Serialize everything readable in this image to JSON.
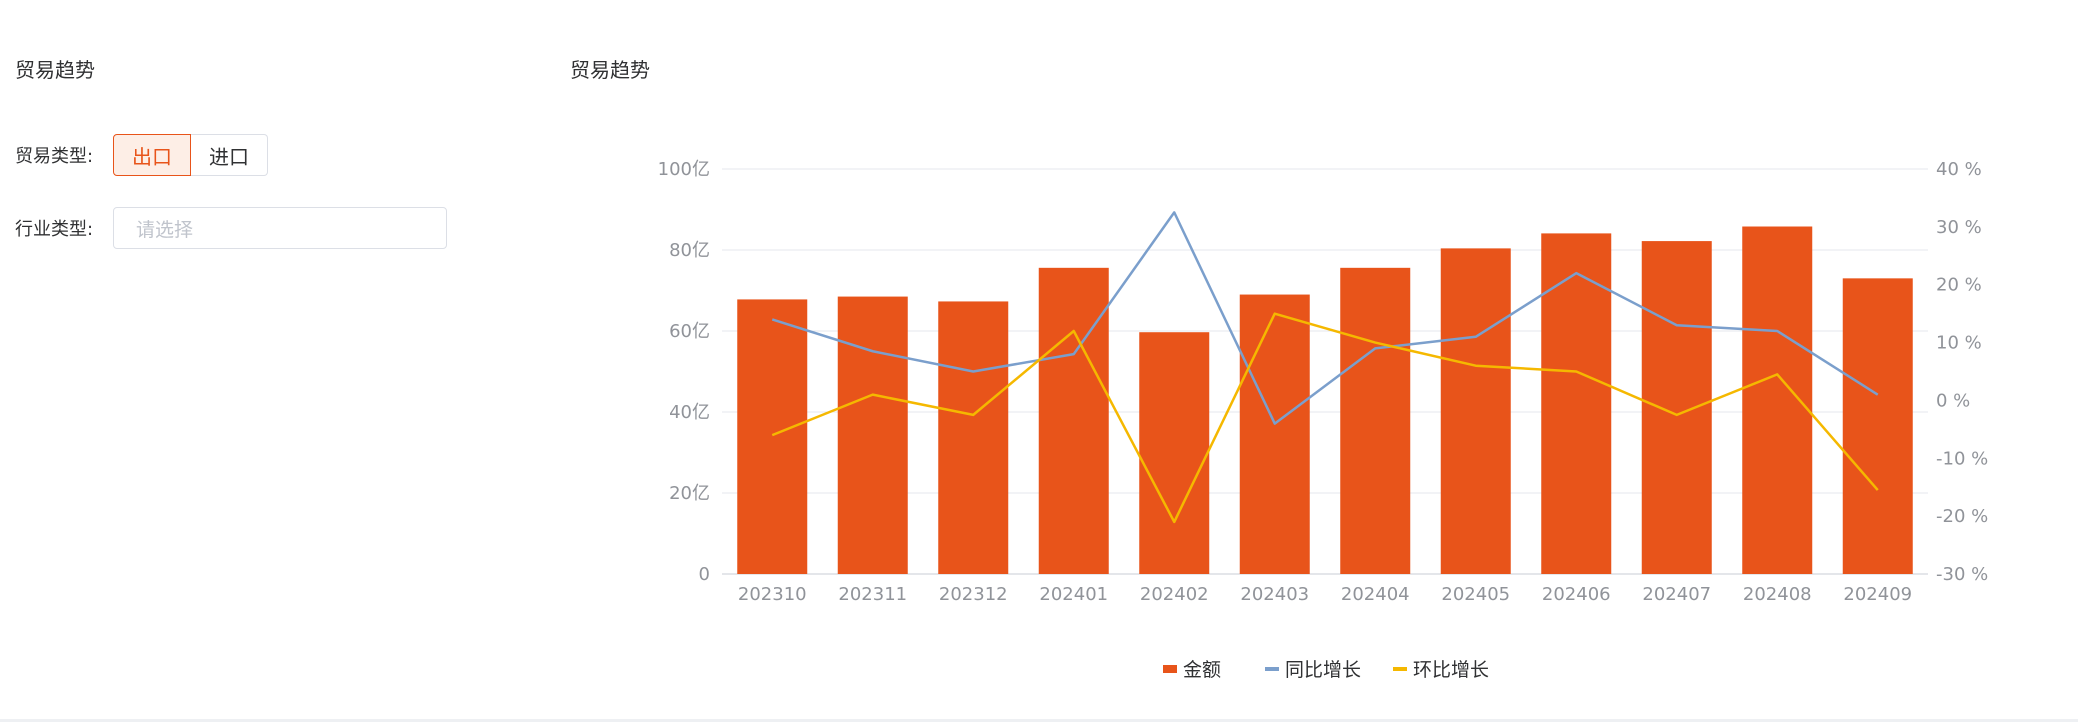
{
  "left_panel": {
    "title": "贸易趋势",
    "trade_type_label": "贸易类型:",
    "trade_type_options": [
      "出口",
      "进口"
    ],
    "trade_type_selected": "出口",
    "industry_label": "行业类型:",
    "industry_placeholder": "请选择"
  },
  "chart_panel": {
    "title": "贸易趋势"
  },
  "colors": {
    "accent": "#e8541a",
    "bar": "#e8541a",
    "yoy": "#7b9fcc",
    "mom": "#f5b800",
    "grid": "#e4e7ed",
    "axis_text": "#909399"
  },
  "chart_data": {
    "type": "bar",
    "title": "",
    "categories": [
      "202310",
      "202311",
      "202312",
      "202401",
      "202402",
      "202403",
      "202404",
      "202405",
      "202406",
      "202407",
      "202408",
      "202409"
    ],
    "series": [
      {
        "name": "金额",
        "type": "bar",
        "axis": "left",
        "values": [
          67.8,
          68.5,
          67.3,
          75.6,
          59.7,
          69.0,
          75.6,
          80.4,
          84.1,
          82.2,
          85.8,
          73.0
        ]
      },
      {
        "name": "同比增长",
        "type": "line",
        "axis": "right",
        "values": [
          14,
          8.5,
          5,
          8,
          32.5,
          -4,
          9,
          11,
          22,
          13,
          12,
          1
        ]
      },
      {
        "name": "环比增长",
        "type": "line",
        "axis": "right",
        "values": [
          -6,
          1,
          -2.5,
          12,
          -21,
          15,
          10,
          6,
          5,
          -2.5,
          4.5,
          -15.5
        ]
      }
    ],
    "y_left": {
      "min": 0,
      "max": 100,
      "ticks": [
        "0",
        "20亿",
        "40亿",
        "60亿",
        "80亿",
        "100亿"
      ]
    },
    "y_right": {
      "min": -30,
      "max": 40,
      "ticks": [
        "-30 %",
        "-20 %",
        "-10 %",
        "0 %",
        "10 %",
        "20 %",
        "30 %",
        "40 %"
      ]
    },
    "grid": true,
    "legend_position": "bottom-center"
  }
}
